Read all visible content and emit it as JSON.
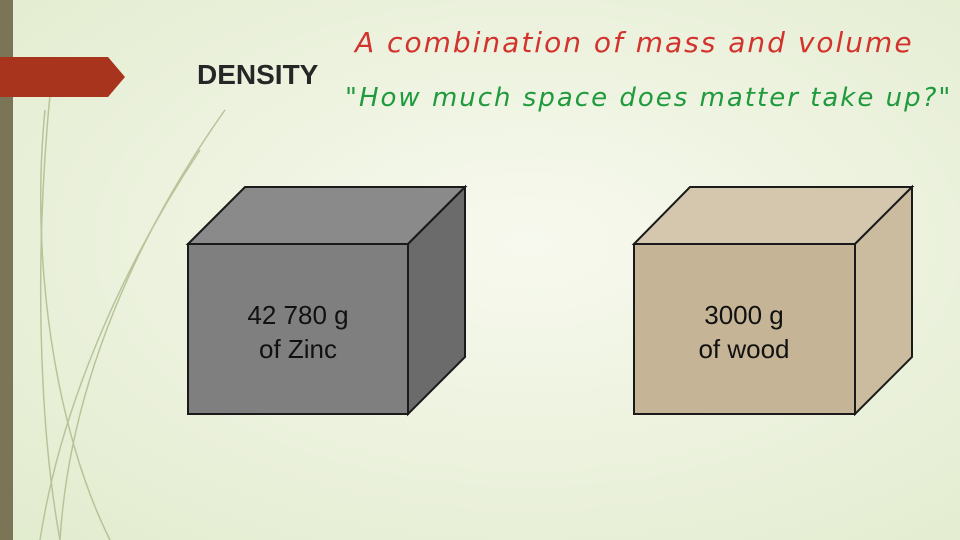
{
  "slide": {
    "title": "DENSITY",
    "definition": "A combination of mass and volume",
    "question": "\"How much space does matter take up?\"",
    "objects": [
      {
        "lines": [
          "42 780 g",
          "of Zinc"
        ]
      },
      {
        "lines": [
          "3000 g",
          "of wood"
        ]
      }
    ]
  }
}
